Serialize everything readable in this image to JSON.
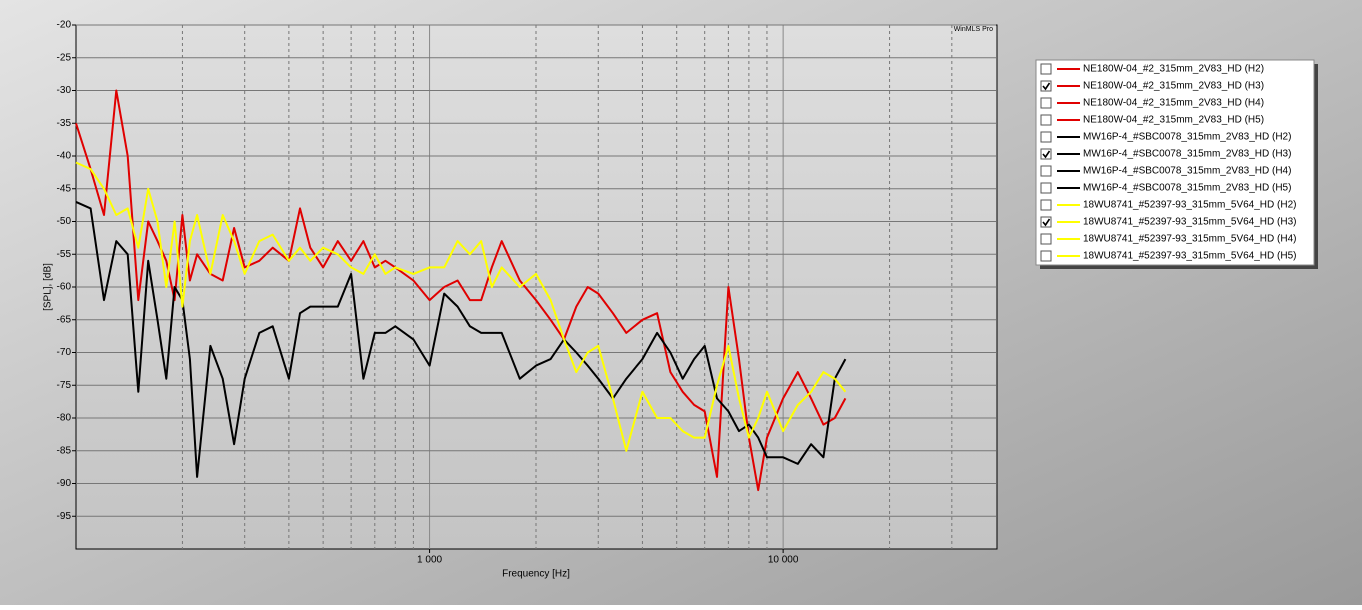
{
  "chart_data": {
    "type": "line",
    "watermark": "WinMLS Pro",
    "xlabel": "Frequency [Hz]",
    "ylabel": "[SPL], [dB]",
    "xscale": "log",
    "xlim": [
      100,
      40000
    ],
    "xticks": [
      {
        "value": 1000,
        "label": "1 000"
      },
      {
        "value": 10000,
        "label": "10 000"
      }
    ],
    "ylim": [
      -100,
      -20
    ],
    "yticks": [
      -95,
      -90,
      -85,
      -80,
      -75,
      -70,
      -65,
      -60,
      -55,
      -50,
      -45,
      -40,
      -35,
      -30,
      -25,
      -20
    ],
    "grid": true,
    "x": [
      100,
      110,
      120,
      130,
      140,
      150,
      160,
      170,
      180,
      190,
      200,
      210,
      220,
      240,
      260,
      280,
      300,
      330,
      360,
      400,
      430,
      460,
      500,
      550,
      600,
      650,
      700,
      750,
      800,
      900,
      1000,
      1100,
      1200,
      1300,
      1400,
      1500,
      1600,
      1800,
      2000,
      2200,
      2400,
      2600,
      2800,
      3000,
      3300,
      3600,
      4000,
      4400,
      4800,
      5200,
      5600,
      6000,
      6500,
      7000,
      7500,
      8000,
      8500,
      9000,
      10000,
      11000,
      12000,
      13000,
      14000,
      15000
    ],
    "series": [
      {
        "name": "NE180W-04_#2_315mm_2V83_HD (H2)",
        "color": "#e00000",
        "checked": false
      },
      {
        "name": "NE180W-04_#2_315mm_2V83_HD (H3)",
        "color": "#e00000",
        "checked": true,
        "values": [
          -35,
          -42,
          -49,
          -30,
          -40,
          -62,
          -50,
          -53,
          -56,
          -62,
          -49,
          -59,
          -55,
          -58,
          -59,
          -51,
          -57,
          -56,
          -54,
          -56,
          -48,
          -54,
          -57,
          -53,
          -56,
          -53,
          -57,
          -56,
          -57,
          -59,
          -62,
          -60,
          -59,
          -62,
          -62,
          -57,
          -53,
          -59,
          -62,
          -65,
          -68,
          -63,
          -60,
          -61,
          -64,
          -67,
          -65,
          -64,
          -73,
          -76,
          -78,
          -79,
          -89,
          -60,
          -71,
          -83,
          -91,
          -83,
          -77,
          -73,
          -77,
          -81,
          -80,
          -77
        ]
      },
      {
        "name": "NE180W-04_#2_315mm_2V83_HD (H4)",
        "color": "#e00000",
        "checked": false
      },
      {
        "name": "NE180W-04_#2_315mm_2V83_HD (H5)",
        "color": "#e00000",
        "checked": false
      },
      {
        "name": "MW16P-4_#SBC0078_315mm_2V83_HD (H2)",
        "color": "#000000",
        "checked": false
      },
      {
        "name": "MW16P-4_#SBC0078_315mm_2V83_HD (H3)",
        "color": "#000000",
        "checked": true,
        "values": [
          -47,
          -48,
          -62,
          -53,
          -55,
          -76,
          -56,
          -65,
          -74,
          -60,
          -62,
          -71,
          -89,
          -69,
          -74,
          -84,
          -74,
          -67,
          -66,
          -74,
          -64,
          -63,
          -63,
          -63,
          -58,
          -74,
          -67,
          -67,
          -66,
          -68,
          -72,
          -61,
          -63,
          -66,
          -67,
          -67,
          -67,
          -74,
          -72,
          -71,
          -68,
          -70,
          -72,
          -74,
          -77,
          -74,
          -71,
          -67,
          -70,
          -74,
          -71,
          -69,
          -77,
          -79,
          -82,
          -81,
          -83,
          -86,
          -86,
          -87,
          -84,
          -86,
          -74,
          -71
        ]
      },
      {
        "name": "MW16P-4_#SBC0078_315mm_2V83_HD (H4)",
        "color": "#000000",
        "checked": false
      },
      {
        "name": "MW16P-4_#SBC0078_315mm_2V83_HD (H5)",
        "color": "#000000",
        "checked": false
      },
      {
        "name": "18WU8741_#52397-93_315mm_5V64_HD (H2)",
        "color": "#ffff00",
        "checked": false
      },
      {
        "name": "18WU8741_#52397-93_315mm_5V64_HD (H3)",
        "color": "#ffff00",
        "checked": true,
        "values": [
          -41,
          -42,
          -45,
          -49,
          -48,
          -54,
          -45,
          -50,
          -60,
          -50,
          -63,
          -53,
          -49,
          -58,
          -49,
          -53,
          -58,
          -53,
          -52,
          -56,
          -54,
          -56,
          -54,
          -55,
          -57,
          -58,
          -55,
          -58,
          -57,
          -58,
          -57,
          -57,
          -53,
          -55,
          -53,
          -60,
          -57,
          -60,
          -58,
          -62,
          -68,
          -73,
          -70,
          -69,
          -77,
          -85,
          -76,
          -80,
          -80,
          -82,
          -83,
          -83,
          -75,
          -69,
          -77,
          -83,
          -80,
          -76,
          -82,
          -78,
          -76,
          -73,
          -74,
          -76
        ]
      },
      {
        "name": "18WU8741_#52397-93_315mm_5V64_HD (H4)",
        "color": "#ffff00",
        "checked": false
      },
      {
        "name": "18WU8741_#52397-93_315mm_5V64_HD (H5)",
        "color": "#ffff00",
        "checked": false
      }
    ]
  }
}
